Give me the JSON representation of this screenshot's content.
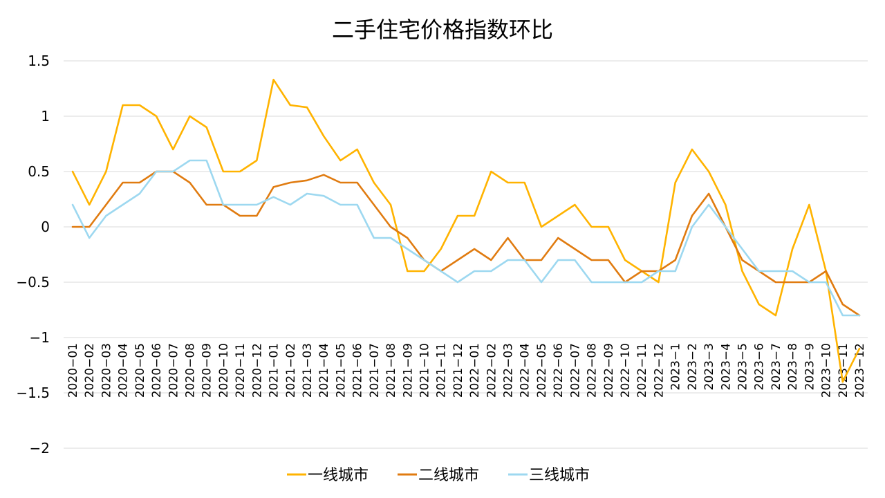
{
  "chart_data": {
    "type": "line",
    "title": "二手住宅价格指数环比",
    "xlabel": "",
    "ylabel": "",
    "ylim": [
      -2,
      1.5
    ],
    "yticks": [
      1.5,
      1,
      0.5,
      0,
      -0.5,
      -1,
      -1.5,
      -2
    ],
    "ytick_labels": [
      "1.5",
      "1",
      "0.5",
      "0",
      "−0.5",
      "−1",
      "−1.5",
      "−2"
    ],
    "grid": true,
    "legend_position": "bottom",
    "categories": [
      "2020−01",
      "2020−02",
      "2020−03",
      "2020−04",
      "2020−05",
      "2020−06",
      "2020−07",
      "2020−08",
      "2020−09",
      "2020−10",
      "2020−11",
      "2020−12",
      "2021−01",
      "2021−02",
      "2021−03",
      "2021−04",
      "2021−05",
      "2021−06",
      "2021−07",
      "2021−08",
      "2021−09",
      "2021−10",
      "2021−11",
      "2021−12",
      "2022−01",
      "2022−02",
      "2022−03",
      "2022−04",
      "2022−05",
      "2022−06",
      "2022−07",
      "2022−08",
      "2022−09",
      "2022−10",
      "2022−11",
      "2022−12",
      "2023−1",
      "2023−2",
      "2023−3",
      "2023−4",
      "2023−5",
      "2023−6",
      "2023−7",
      "2023−8",
      "2023−9",
      "2023−10",
      "2023−11",
      "2023−12"
    ],
    "series": [
      {
        "name": "一线城市",
        "color": "#FFB300",
        "values": [
          0.5,
          0.2,
          0.5,
          1.1,
          1.1,
          1.0,
          0.7,
          1.0,
          0.9,
          0.5,
          0.5,
          0.6,
          1.33,
          1.1,
          1.08,
          0.82,
          0.6,
          0.7,
          0.4,
          0.2,
          -0.4,
          -0.4,
          -0.2,
          0.1,
          0.1,
          0.5,
          0.4,
          0.4,
          0.0,
          0.1,
          0.2,
          0.0,
          0.0,
          -0.3,
          -0.4,
          -0.5,
          0.4,
          0.7,
          0.5,
          0.2,
          -0.4,
          -0.7,
          -0.8,
          -0.2,
          0.2,
          -0.4,
          -1.4,
          -1.1
        ]
      },
      {
        "name": "二线城市",
        "color": "#E07B10",
        "values": [
          0.0,
          0.0,
          0.2,
          0.4,
          0.4,
          0.5,
          0.5,
          0.4,
          0.2,
          0.2,
          0.1,
          0.1,
          0.36,
          0.4,
          0.42,
          0.47,
          0.4,
          0.4,
          0.2,
          0.0,
          -0.1,
          -0.3,
          -0.4,
          -0.3,
          -0.2,
          -0.3,
          -0.1,
          -0.3,
          -0.3,
          -0.1,
          -0.2,
          -0.3,
          -0.3,
          -0.5,
          -0.4,
          -0.4,
          -0.3,
          0.1,
          0.3,
          0.0,
          -0.3,
          -0.4,
          -0.5,
          -0.5,
          -0.5,
          -0.4,
          -0.7,
          -0.8
        ]
      },
      {
        "name": "三线城市",
        "color": "#9DD8F0",
        "values": [
          0.2,
          -0.1,
          0.1,
          0.2,
          0.3,
          0.5,
          0.5,
          0.6,
          0.6,
          0.2,
          0.2,
          0.2,
          0.27,
          0.2,
          0.3,
          0.28,
          0.2,
          0.2,
          -0.1,
          -0.1,
          -0.2,
          -0.3,
          -0.4,
          -0.5,
          -0.4,
          -0.4,
          -0.3,
          -0.3,
          -0.5,
          -0.3,
          -0.3,
          -0.5,
          -0.5,
          -0.5,
          -0.5,
          -0.4,
          -0.4,
          0.0,
          0.2,
          0.0,
          -0.2,
          -0.4,
          -0.4,
          -0.4,
          -0.5,
          -0.5,
          -0.8,
          -0.8
        ]
      }
    ]
  }
}
